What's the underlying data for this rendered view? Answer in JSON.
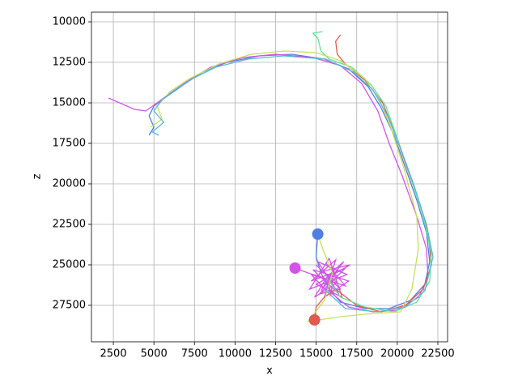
{
  "chart_data": {
    "type": "line",
    "x_label": "x",
    "y_label": "z",
    "xlim": [
      1150,
      23100
    ],
    "ylim": [
      29750,
      9400
    ],
    "xticks": [
      2500,
      5000,
      7500,
      10000,
      12500,
      15000,
      17500,
      20000,
      22500
    ],
    "yticks": [
      10000,
      12500,
      15000,
      17500,
      20000,
      22500,
      25000,
      27500
    ],
    "grid": true,
    "series": [
      {
        "color": "#4f7fe0",
        "x": [
          15100,
          15000,
          15300,
          15800,
          16500,
          18000,
          19500,
          20800,
          21700,
          22000,
          21800,
          21200,
          20500,
          19800,
          19000,
          18200,
          17000,
          15500,
          13500,
          11500,
          9500,
          8000,
          6800,
          5800,
          5000,
          4700,
          5000,
          4700
        ],
        "values": [
          23100,
          24500,
          25500,
          26500,
          27300,
          27700,
          27700,
          27200,
          26200,
          24800,
          23000,
          21000,
          19000,
          17000,
          15300,
          14000,
          12900,
          12300,
          12000,
          12100,
          12500,
          13100,
          13900,
          14600,
          15200,
          15800,
          16500,
          17000
        ]
      },
      {
        "color": "#d253e6",
        "x": [
          13700,
          14500,
          15500,
          16000,
          17000,
          18500,
          20000,
          21300,
          21900,
          21800,
          21200,
          20300,
          19500,
          18800,
          17800,
          16500,
          14800,
          12500,
          10500,
          8500,
          7000,
          6000,
          5200,
          4500,
          3800,
          2200
        ],
        "values": [
          25200,
          25500,
          25800,
          26800,
          27600,
          27900,
          27800,
          27000,
          25800,
          24000,
          22000,
          19500,
          17500,
          15500,
          13800,
          12700,
          12200,
          12000,
          12200,
          12800,
          13700,
          14400,
          15000,
          15500,
          15400,
          14700
        ]
      },
      {
        "color": "#d253e6",
        "x": [
          15000,
          16500,
          15200,
          16800,
          14700,
          16200,
          15500,
          17000,
          14800,
          16400,
          15100,
          16900,
          14600,
          15800,
          16600,
          15000,
          17100,
          15400,
          16300,
          14900,
          15700,
          16700,
          15300,
          16100,
          15900,
          14700,
          16800,
          15600
        ],
        "values": [
          25000,
          26500,
          26800,
          25200,
          26000,
          24700,
          27000,
          26000,
          25300,
          26800,
          24800,
          25600,
          26500,
          24600,
          27000,
          26200,
          25000,
          25400,
          26100,
          27000,
          25700,
          24800,
          26600,
          25300,
          26900,
          25600,
          26300,
          24900
        ]
      },
      {
        "color": "#e05a4f",
        "x": [
          14900,
          15000,
          15500,
          16200,
          17500,
          19000,
          20500,
          21600,
          22100,
          21900,
          21300,
          20600,
          19900,
          19100,
          18000,
          16800,
          16300,
          16200,
          16500
        ],
        "values": [
          28400,
          27600,
          27000,
          26500,
          27500,
          27900,
          27500,
          26500,
          25000,
          23000,
          21000,
          19000,
          17000,
          15000,
          13600,
          12600,
          12000,
          11200,
          10800
        ]
      },
      {
        "color": "#5ee39a",
        "x": [
          15800,
          16500,
          18000,
          19800,
          21200,
          22000,
          22100,
          21600,
          20800,
          20000,
          19300,
          18400,
          17200,
          15800,
          15300,
          15100,
          14800,
          15400
        ],
        "values": [
          26000,
          27000,
          27600,
          27900,
          27300,
          26000,
          24300,
          22000,
          19500,
          17200,
          15200,
          13900,
          12800,
          12300,
          11800,
          11000,
          10700,
          10600
        ]
      },
      {
        "color": "#c6e05a",
        "x": [
          15100,
          15400,
          16000,
          15500,
          14500,
          16500,
          18500,
          20200,
          20900,
          21300,
          21200,
          20400,
          19600,
          18900,
          18000,
          16500,
          15000,
          13000,
          11000,
          9000,
          7200,
          6000,
          5200,
          5500,
          4800
        ],
        "values": [
          23100,
          24000,
          25500,
          27200,
          28500,
          28200,
          28000,
          27900,
          26500,
          24000,
          22000,
          19000,
          16500,
          14800,
          13500,
          12400,
          11900,
          11800,
          12000,
          12600,
          13500,
          14300,
          15200,
          16000,
          16500
        ]
      },
      {
        "color": "#5ab8d0",
        "x": [
          15500,
          16800,
          18800,
          20500,
          21700,
          22200,
          21800,
          21000,
          20200,
          19400,
          18500,
          17300,
          15600,
          13000,
          10800,
          8800,
          7400,
          6300,
          5500,
          5000,
          5600,
          4900,
          5300
        ],
        "values": [
          26500,
          27700,
          27900,
          27600,
          26600,
          24500,
          22500,
          20000,
          17800,
          15800,
          14200,
          13100,
          12300,
          12100,
          12300,
          12800,
          13500,
          14200,
          14800,
          15500,
          16200,
          16800,
          17000
        ]
      }
    ],
    "somas": [
      {
        "x": 15100,
        "y": 23100,
        "color": "#4f7fe0"
      },
      {
        "x": 13700,
        "y": 25200,
        "color": "#d253e6"
      },
      {
        "x": 14900,
        "y": 28400,
        "color": "#e05a4f"
      }
    ]
  }
}
